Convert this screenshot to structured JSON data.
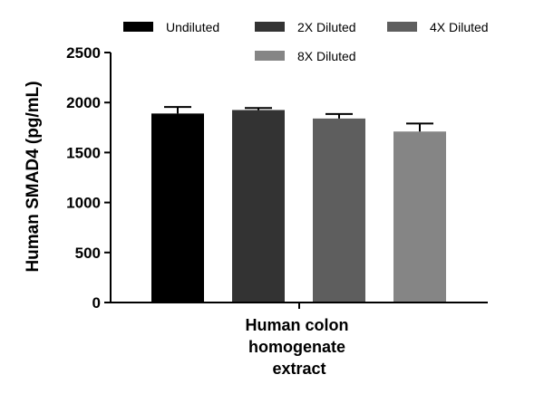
{
  "chart_data": {
    "type": "bar",
    "categories": [
      "Human colon homogenate extract"
    ],
    "category_lines": [
      "Human colon",
      "homogenate",
      "extract"
    ],
    "series": [
      {
        "name": "Undiluted",
        "values": [
          1890
        ],
        "error": [
          65
        ],
        "color": "#000000"
      },
      {
        "name": "2X Diluted",
        "values": [
          1925
        ],
        "error": [
          20
        ],
        "color": "#333333"
      },
      {
        "name": "4X Diluted",
        "values": [
          1840
        ],
        "error": [
          45
        ],
        "color": "#5e5e5e"
      },
      {
        "name": "8X Diluted",
        "values": [
          1710
        ],
        "error": [
          80
        ],
        "color": "#858585"
      }
    ],
    "ylabel": "Human SMAD4 (pg/mL)",
    "ylim": [
      0,
      2500
    ],
    "yticks": [
      0,
      500,
      1000,
      1500,
      2000,
      2500
    ],
    "grid": false,
    "legend_position": "top"
  }
}
